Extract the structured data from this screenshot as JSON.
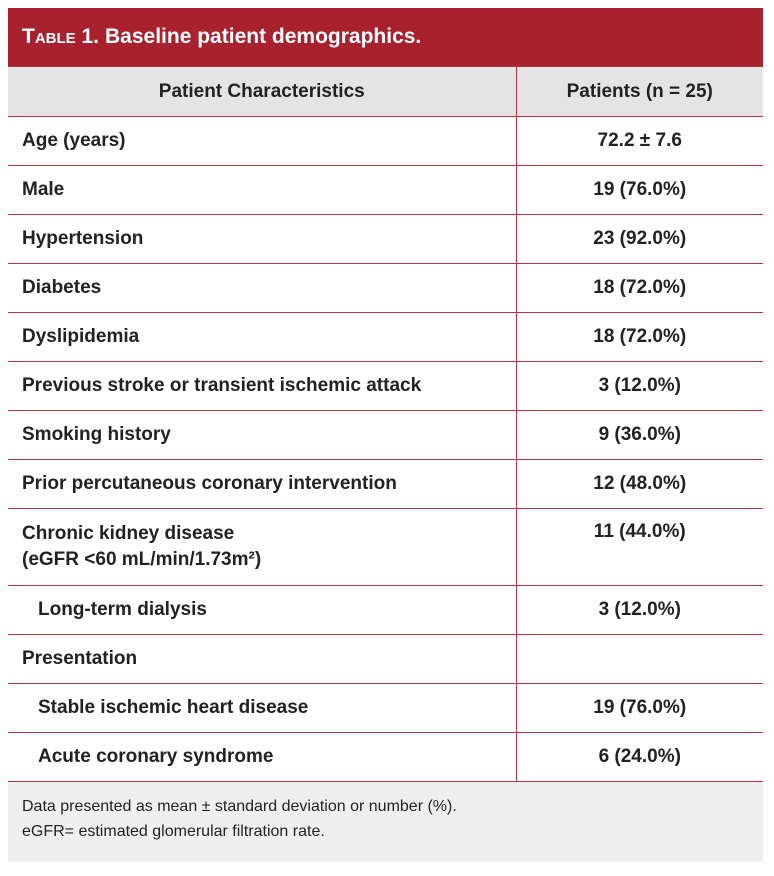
{
  "title": {
    "label": "Table 1.",
    "text": "Baseline patient demographics."
  },
  "table": {
    "header": [
      "Patient Characteristics",
      "Patients (n = 25)"
    ],
    "rows": [
      {
        "label": "Age (years)",
        "value": "72.2 ± 7.6"
      },
      {
        "label": "Male",
        "value": "19 (76.0%)"
      },
      {
        "label": "Hypertension",
        "value": "23 (92.0%)"
      },
      {
        "label": "Diabetes",
        "value": "18 (72.0%)"
      },
      {
        "label": "Dyslipidemia",
        "value": "18 (72.0%)"
      },
      {
        "label": "Previous stroke or transient ischemic attack",
        "value": "3 (12.0%)"
      },
      {
        "label": "Smoking history",
        "value": "9 (36.0%)"
      },
      {
        "label": "Prior percutaneous coronary intervention",
        "value": "12 (48.0%)"
      },
      {
        "label": "Chronic kidney disease",
        "sublabel": "(eGFR <60 mL/min/1.73m²)",
        "value": "11 (44.0%)"
      },
      {
        "label": "Long-term dialysis",
        "value": "3 (12.0%)",
        "indent": true
      },
      {
        "label": "Presentation"
      },
      {
        "label": "Stable ischemic heart disease",
        "value": "19 (76.0%)",
        "indent": true
      },
      {
        "label": "Acute coronary syndrome",
        "value": "6 (24.0%)",
        "indent": true
      }
    ]
  },
  "footnote": [
    "Data presented as mean ± standard deviation or number (%).",
    "eGFR= estimated glomerular filtration rate."
  ]
}
